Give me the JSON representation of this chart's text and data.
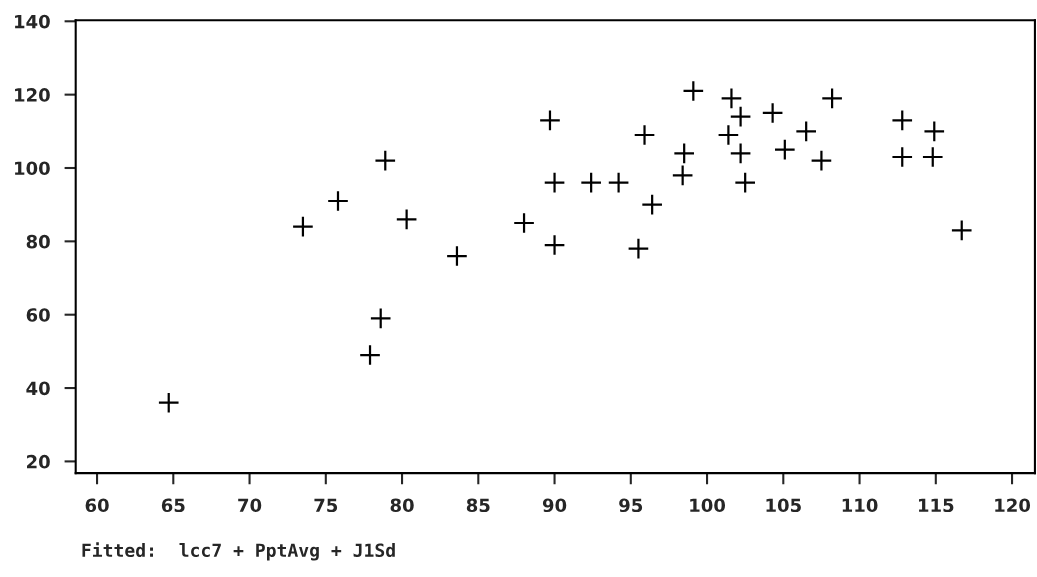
{
  "chart_data": {
    "type": "scatter",
    "marker": "cross",
    "grid": false,
    "legend": false,
    "x": [
      64.7,
      73.5,
      75.8,
      78.9,
      80.3,
      78.6,
      77.9,
      83.6,
      88.0,
      89.7,
      90.0,
      90.0,
      92.4,
      94.2,
      95.9,
      96.4,
      95.5,
      98.5,
      98.4,
      99.1,
      101.6,
      102.2,
      101.4,
      102.2,
      102.5,
      104.3,
      105.1,
      106.5,
      107.5,
      108.2,
      112.8,
      112.8,
      114.9,
      114.8,
      116.7
    ],
    "series": [
      {
        "color": "#000000",
        "values": [
          36,
          84,
          91,
          102,
          86,
          59,
          49,
          76,
          85,
          113,
          96,
          79,
          96,
          96,
          109,
          90,
          78,
          104,
          98,
          121,
          119,
          114,
          109,
          104,
          96,
          115,
          105,
          110,
          102,
          119,
          113,
          103,
          110,
          103,
          83
        ]
      }
    ],
    "xlim": [
      58.6,
      121.5
    ],
    "ylim": [
      16.8,
      140.3
    ],
    "xticks": [
      60,
      65,
      70,
      75,
      80,
      85,
      90,
      95,
      100,
      105,
      110,
      115,
      120
    ],
    "yticks": [
      20,
      40,
      60,
      80,
      100,
      120,
      140
    ],
    "annotations": [
      "Fitted:  lcc7 + PptAvg + J1Sd"
    ]
  }
}
